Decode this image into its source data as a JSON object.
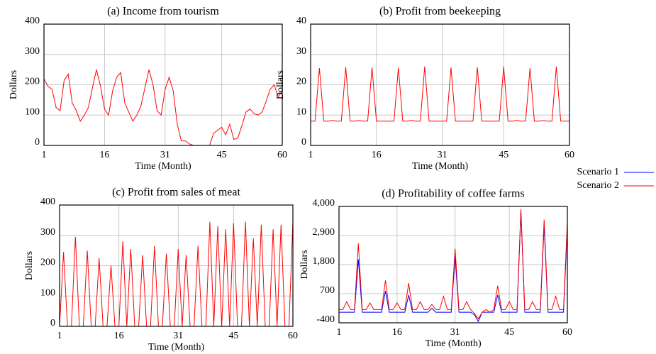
{
  "chart_data": [
    {
      "type": "line",
      "title": "(a)  Income from tourism",
      "xlabel": "Time (Month)",
      "ylabel": "Dollars",
      "x": [
        1,
        2,
        3,
        4,
        5,
        6,
        7,
        8,
        9,
        10,
        11,
        12,
        13,
        14,
        15,
        16,
        17,
        18,
        19,
        20,
        21,
        22,
        23,
        24,
        25,
        26,
        27,
        28,
        29,
        30,
        31,
        32,
        33,
        34,
        35,
        36,
        37,
        38,
        39,
        40,
        41,
        42,
        43,
        44,
        45,
        46,
        47,
        48,
        49,
        50,
        51,
        52,
        53,
        54,
        55,
        56,
        57,
        58,
        59,
        60
      ],
      "xlim": [
        1,
        60
      ],
      "xticks": [
        1,
        16,
        31,
        45,
        60
      ],
      "ylim": [
        0,
        400
      ],
      "yticks": [
        0,
        100,
        200,
        300,
        400
      ],
      "grid": true,
      "series": [
        {
          "name": "Scenario 1",
          "color": "#0000ff",
          "values": [
            0,
            0,
            0,
            0,
            0,
            0,
            0,
            0,
            0,
            0,
            0,
            0,
            0,
            0,
            0,
            0,
            0,
            0,
            0,
            0,
            0,
            0,
            0,
            0,
            0,
            0,
            0,
            0,
            0,
            0,
            0,
            0,
            0,
            0,
            0,
            0,
            0,
            0,
            0,
            0,
            0,
            0,
            0,
            0,
            0,
            0,
            0,
            0,
            0,
            0,
            0,
            0,
            0,
            0,
            0,
            0,
            0,
            0,
            0,
            0
          ]
        },
        {
          "name": "Scenario 2",
          "color": "#ff0000",
          "values": [
            220,
            195,
            185,
            125,
            115,
            215,
            235,
            140,
            115,
            80,
            100,
            125,
            190,
            250,
            195,
            120,
            100,
            180,
            225,
            240,
            140,
            110,
            80,
            100,
            130,
            190,
            250,
            200,
            115,
            100,
            185,
            225,
            180,
            70,
            15,
            15,
            5,
            0,
            0,
            0,
            0,
            0,
            40,
            50,
            60,
            35,
            70,
            20,
            25,
            65,
            110,
            120,
            105,
            100,
            110,
            145,
            185,
            200,
            160,
            180
          ]
        }
      ]
    },
    {
      "type": "line",
      "title": "(b)   Profit from beekeeping",
      "xlabel": "Time (Month)",
      "ylabel": "Dollars",
      "x": [
        1,
        2,
        3,
        4,
        5,
        6,
        7,
        8,
        9,
        10,
        11,
        12,
        13,
        14,
        15,
        16,
        17,
        18,
        19,
        20,
        21,
        22,
        23,
        24,
        25,
        26,
        27,
        28,
        29,
        30,
        31,
        32,
        33,
        34,
        35,
        36,
        37,
        38,
        39,
        40,
        41,
        42,
        43,
        44,
        45,
        46,
        47,
        48,
        49,
        50,
        51,
        52,
        53,
        54,
        55,
        56,
        57,
        58,
        59,
        60
      ],
      "xlim": [
        1,
        60
      ],
      "xticks": [
        1,
        16,
        31,
        45,
        60
      ],
      "ylim": [
        0,
        40
      ],
      "yticks": [
        0,
        10,
        20,
        30,
        40
      ],
      "grid": true,
      "series": [
        {
          "name": "Scenario 1",
          "color": "#0000ff",
          "values": [
            0,
            0,
            0,
            0,
            0,
            0,
            0,
            0,
            0,
            0,
            0,
            0,
            0,
            0,
            0,
            0,
            0,
            0,
            0,
            0,
            0,
            0,
            0,
            0,
            0,
            0,
            0,
            0,
            0,
            0,
            0,
            0,
            0,
            0,
            0,
            0,
            0,
            0,
            0,
            0,
            0,
            0,
            0,
            0,
            0,
            0,
            0,
            0,
            0,
            0,
            0,
            0,
            0,
            0,
            0,
            0,
            0,
            0,
            0,
            0
          ]
        },
        {
          "name": "Scenario 2",
          "color": "#ff0000",
          "values": [
            8,
            8,
            25.5,
            8,
            8,
            8.2,
            8,
            8,
            25.8,
            8,
            8,
            8.2,
            8,
            8,
            25.7,
            8,
            8,
            8,
            8,
            8,
            25.6,
            8,
            8,
            8.2,
            8,
            8,
            26,
            8,
            8,
            8,
            8,
            8,
            25.7,
            8,
            8,
            8,
            8,
            8,
            25.8,
            8,
            8,
            8,
            8,
            8,
            25.9,
            8,
            8,
            8.2,
            8,
            8,
            25.5,
            8,
            8,
            8.2,
            8,
            8,
            26,
            8,
            8,
            8
          ]
        }
      ]
    },
    {
      "type": "line",
      "title": "(c)   Profit from sales of meat",
      "xlabel": "Time (Month)",
      "ylabel": "Dollars",
      "x": [
        1,
        2,
        3,
        4,
        5,
        6,
        7,
        8,
        9,
        10,
        11,
        12,
        13,
        14,
        15,
        16,
        17,
        18,
        19,
        20,
        21,
        22,
        23,
        24,
        25,
        26,
        27,
        28,
        29,
        30,
        31,
        32,
        33,
        34,
        35,
        36,
        37,
        38,
        39,
        40,
        41,
        42,
        43,
        44,
        45,
        46,
        47,
        48,
        49,
        50,
        51,
        52,
        53,
        54,
        55,
        56,
        57,
        58,
        59,
        60
      ],
      "xlim": [
        1,
        60
      ],
      "xticks": [
        1,
        16,
        31,
        45,
        60
      ],
      "ylim": [
        0,
        400
      ],
      "yticks": [
        0,
        100,
        200,
        300,
        400
      ],
      "grid": true,
      "series": [
        {
          "name": "Scenario 1",
          "color": "#0000ff",
          "values": [
            0,
            0,
            0,
            0,
            0,
            0,
            0,
            0,
            0,
            0,
            0,
            0,
            0,
            0,
            0,
            0,
            0,
            0,
            0,
            0,
            0,
            0,
            0,
            0,
            0,
            0,
            0,
            0,
            0,
            0,
            0,
            0,
            0,
            0,
            0,
            0,
            0,
            0,
            0,
            0,
            0,
            0,
            0,
            0,
            0,
            0,
            0,
            0,
            0,
            0,
            0,
            0,
            0,
            0,
            0,
            0,
            0,
            0,
            0,
            0
          ]
        },
        {
          "name": "Scenario 2",
          "color": "#ff0000",
          "values": [
            0,
            245,
            0,
            0,
            295,
            0,
            0,
            250,
            0,
            0,
            225,
            0,
            0,
            200,
            0,
            0,
            280,
            0,
            255,
            0,
            0,
            235,
            0,
            0,
            265,
            0,
            0,
            240,
            0,
            0,
            255,
            0,
            235,
            0,
            0,
            265,
            0,
            0,
            345,
            0,
            330,
            0,
            320,
            0,
            340,
            0,
            0,
            345,
            0,
            290,
            0,
            335,
            0,
            0,
            320,
            0,
            335,
            0,
            0,
            345
          ]
        }
      ]
    },
    {
      "type": "line",
      "title": "(d)   Profitability of coffee farms",
      "xlabel": "Time (Month)",
      "ylabel": "Dollars",
      "x": [
        1,
        2,
        3,
        4,
        5,
        6,
        7,
        8,
        9,
        10,
        11,
        12,
        13,
        14,
        15,
        16,
        17,
        18,
        19,
        20,
        21,
        22,
        23,
        24,
        25,
        26,
        27,
        28,
        29,
        30,
        31,
        32,
        33,
        34,
        35,
        36,
        37,
        38,
        39,
        40,
        41,
        42,
        43,
        44,
        45,
        46,
        47,
        48,
        49,
        50,
        51,
        52,
        53,
        54,
        55,
        56,
        57,
        58,
        59,
        60
      ],
      "xlim": [
        1,
        60
      ],
      "xticks": [
        1,
        16,
        31,
        45,
        60
      ],
      "ylim": [
        -400,
        4000
      ],
      "yticks": [
        -400,
        700,
        {
          "value": 1800,
          "label": "1,800"
        },
        {
          "value": 2900,
          "label": "2,900"
        },
        {
          "value": 4000,
          "label": "4,000"
        }
      ],
      "grid": true,
      "series": [
        {
          "name": "Scenario 1",
          "color": "#0000ff",
          "values": [
            0,
            0,
            0,
            0,
            0,
            2000,
            0,
            0,
            0,
            0,
            0,
            0,
            800,
            0,
            0,
            0,
            0,
            0,
            650,
            0,
            0,
            0,
            0,
            0,
            150,
            0,
            0,
            0,
            0,
            0,
            2100,
            0,
            0,
            0,
            0,
            -100,
            -350,
            0,
            0,
            0,
            0,
            650,
            0,
            0,
            0,
            0,
            0,
            3800,
            0,
            0,
            0,
            0,
            0,
            3300,
            0,
            0,
            0,
            0,
            0,
            3200
          ]
        },
        {
          "name": "Scenario 2",
          "color": "#ff0000",
          "values": [
            100,
            100,
            400,
            100,
            100,
            2600,
            100,
            100,
            350,
            100,
            100,
            100,
            1200,
            100,
            100,
            350,
            100,
            100,
            1100,
            100,
            100,
            400,
            100,
            100,
            300,
            100,
            100,
            600,
            100,
            100,
            2400,
            100,
            100,
            400,
            100,
            -50,
            -250,
            0,
            100,
            0,
            100,
            1000,
            100,
            100,
            400,
            100,
            100,
            3900,
            100,
            100,
            400,
            100,
            100,
            3500,
            100,
            100,
            600,
            100,
            100,
            3400
          ]
        }
      ]
    }
  ]
}
